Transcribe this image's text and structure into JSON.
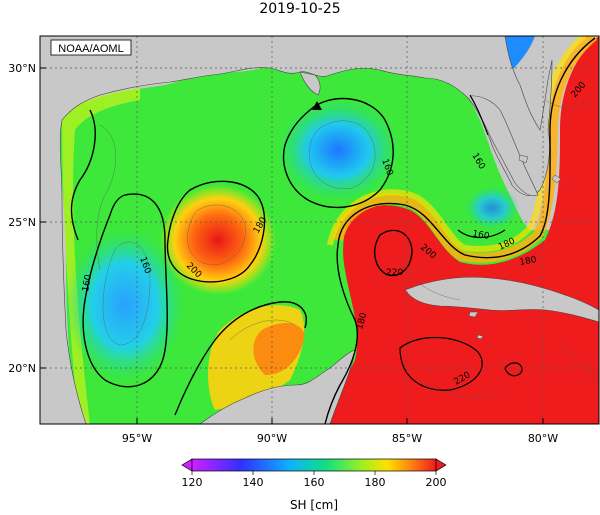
{
  "title": "2019-10-25",
  "credit": "NOAA/AOML",
  "lat_labels": [
    "30°N",
    "25°N",
    "20°N"
  ],
  "lon_labels": [
    "95°W",
    "90°W",
    "85°W",
    "80°W"
  ],
  "colorbar": {
    "label": "SH [cm]",
    "ticks": [
      "120",
      "140",
      "160",
      "180",
      "200"
    ]
  },
  "contour_labels": [
    "160",
    "160",
    "180",
    "200",
    "160",
    "180",
    "200",
    "220",
    "180",
    "220",
    "160",
    "160",
    "180",
    "200"
  ],
  "land_color": "#c8c8c8",
  "marker": "triangle"
}
